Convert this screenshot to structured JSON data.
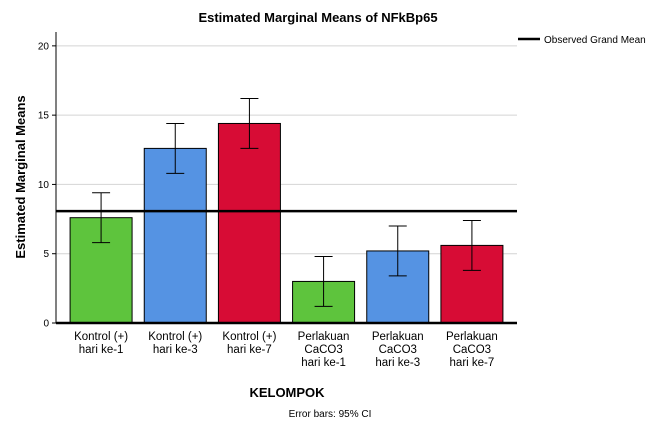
{
  "chart_data": {
    "type": "bar",
    "title": "Estimated Marginal Means of NFkBp65",
    "xlabel": "KELOMPOK",
    "ylabel": "Estimated Marginal Means",
    "ylim": [
      0,
      21
    ],
    "yticks": [
      0,
      5,
      10,
      15,
      20
    ],
    "grid": true,
    "categories": [
      [
        "Kontrol (+)",
        "hari ke-1"
      ],
      [
        "Kontrol (+)",
        "hari ke-3"
      ],
      [
        "Kontrol (+)",
        "hari ke-7"
      ],
      [
        "Perlakuan",
        "CaCO3",
        "hari ke-1"
      ],
      [
        "Perlakuan",
        "CaCO3",
        "hari ke-3"
      ],
      [
        "Perlakuan",
        "CaCO3",
        "hari ke-7"
      ]
    ],
    "values": [
      7.6,
      12.6,
      14.4,
      3.0,
      5.2,
      5.6
    ],
    "error_low": [
      5.8,
      10.8,
      12.6,
      1.2,
      3.4,
      3.8
    ],
    "error_high": [
      9.4,
      14.4,
      16.2,
      4.8,
      7.0,
      7.4
    ],
    "colors": [
      "#5ec43d",
      "#5593e3",
      "#d70c35",
      "#5ec43d",
      "#5593e3",
      "#d70c35"
    ],
    "reference_line": {
      "label": "Observed Grand Mean",
      "value": 8.07
    },
    "legend_position": "top-right",
    "footnote": "Error bars: 95% CI"
  }
}
